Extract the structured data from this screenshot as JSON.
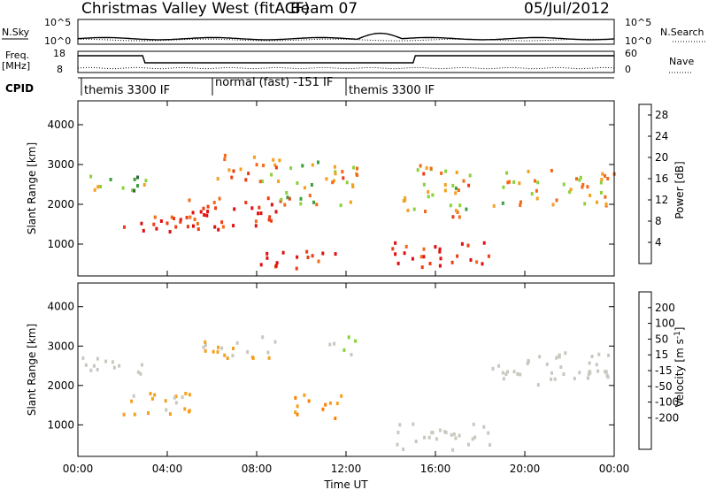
{
  "header": {
    "title": "Christmas Valley West (fitACF)",
    "beam": "Beam 07",
    "date": "05/Jul/2012"
  },
  "labels": {
    "nsky": "N.Sky",
    "nsearch": "N.Search",
    "freq": "Freq.",
    "freq_unit": "[MHz]",
    "nave": "Nave",
    "cpid": "CPID"
  },
  "mode_labels": [
    "themis 3300 IF",
    "normal (fast) -151 IF",
    "themis 3300 IF"
  ],
  "noise_panel": {
    "left_ticks": [
      "10^5",
      "10^0"
    ],
    "right_ticks": [
      "10^5",
      "10^0"
    ]
  },
  "freq_panel": {
    "left_ticks": [
      "18",
      "8"
    ],
    "right_ticks": [
      "60",
      "0"
    ]
  },
  "colors": {
    "power_scale": [
      "#0000ff",
      "#1e3aa8",
      "#2e6e3c",
      "#3aa03a",
      "#8ad23a",
      "#f5a01e",
      "#f36a1a",
      "#ee3c14",
      "#e01010"
    ],
    "velocity_scale": [
      "#ff0000",
      "#ff4000",
      "#ff8000",
      "#f5a020",
      "#c8c8be",
      "#c8c8be",
      "#8ad23a",
      "#3a9e3a",
      "#2040b0",
      "#0000ff"
    ],
    "ground_scatter": "#c8c8be"
  },
  "chart_data": [
    {
      "type": "heatmap",
      "name": "power",
      "xlabel": "",
      "ylabel": "Slant Range [km]",
      "x_range_hours": [
        0,
        24
      ],
      "ylim": [
        200,
        4600
      ],
      "y_ticks": [
        1000,
        2000,
        3000,
        4000
      ],
      "colorbar": {
        "label": "Power [dB]",
        "ticks": [
          4,
          8,
          12,
          16,
          20,
          24,
          28
        ],
        "range": [
          0,
          30
        ]
      },
      "features": [
        {
          "start_h": 0.0,
          "end_h": 3.0,
          "range_from_km": 2300,
          "range_to_km": 2800,
          "level_db": 14
        },
        {
          "start_h": 2.0,
          "end_h": 5.5,
          "range_from_km": 1300,
          "range_to_km": 1900,
          "level_db": 26
        },
        {
          "start_h": 4.5,
          "end_h": 9.5,
          "range_from_km": 1400,
          "range_to_km": 2200,
          "level_db": 26
        },
        {
          "start_h": 5.5,
          "end_h": 9.0,
          "range_from_km": 2600,
          "range_to_km": 3300,
          "level_db": 20
        },
        {
          "start_h": 8.0,
          "end_h": 11.5,
          "range_from_km": 400,
          "range_to_km": 900,
          "level_db": 28
        },
        {
          "start_h": 9.0,
          "end_h": 12.5,
          "range_from_km": 2000,
          "range_to_km": 3200,
          "level_db": 18
        },
        {
          "start_h": 14.0,
          "end_h": 18.5,
          "range_from_km": 400,
          "range_to_km": 1100,
          "level_db": 27
        },
        {
          "start_h": 14.5,
          "end_h": 17.5,
          "range_from_km": 1700,
          "range_to_km": 3100,
          "level_db": 19
        },
        {
          "start_h": 18.5,
          "end_h": 24.0,
          "range_from_km": 2000,
          "range_to_km": 2900,
          "level_db": 17
        }
      ]
    },
    {
      "type": "heatmap",
      "name": "velocity",
      "xlabel": "Time UT",
      "ylabel": "Slant Range [km]",
      "x_range_hours": [
        0,
        24
      ],
      "x_ticks": [
        "00:00",
        "04:00",
        "08:00",
        "12:00",
        "16:00",
        "20:00",
        "00:00"
      ],
      "ylim": [
        200,
        4600
      ],
      "y_ticks": [
        1000,
        2000,
        3000,
        4000
      ],
      "colorbar": {
        "label": "Velocity [m s^-1]",
        "ticks": [
          200,
          100,
          50,
          15,
          -15,
          -50,
          -100,
          -200
        ],
        "range": [
          -250,
          250
        ]
      },
      "features": [
        {
          "start_h": 0.0,
          "end_h": 3.0,
          "range_from_km": 2300,
          "range_to_km": 2800,
          "velocity": 0
        },
        {
          "start_h": 2.0,
          "end_h": 6.0,
          "range_from_km": 1300,
          "range_to_km": 1900,
          "velocity": -60
        },
        {
          "start_h": 5.5,
          "end_h": 9.0,
          "range_from_km": 2600,
          "range_to_km": 3300,
          "velocity": -60
        },
        {
          "start_h": 9.5,
          "end_h": 11.8,
          "range_from_km": 1200,
          "range_to_km": 1800,
          "velocity": -90
        },
        {
          "start_h": 11.0,
          "end_h": 12.5,
          "range_from_km": 2800,
          "range_to_km": 3300,
          "velocity": 40
        },
        {
          "start_h": 14.0,
          "end_h": 18.5,
          "range_from_km": 400,
          "range_to_km": 1100,
          "velocity": 0
        },
        {
          "start_h": 18.5,
          "end_h": 24.0,
          "range_from_km": 2000,
          "range_to_km": 2900,
          "velocity": 0
        }
      ]
    }
  ]
}
